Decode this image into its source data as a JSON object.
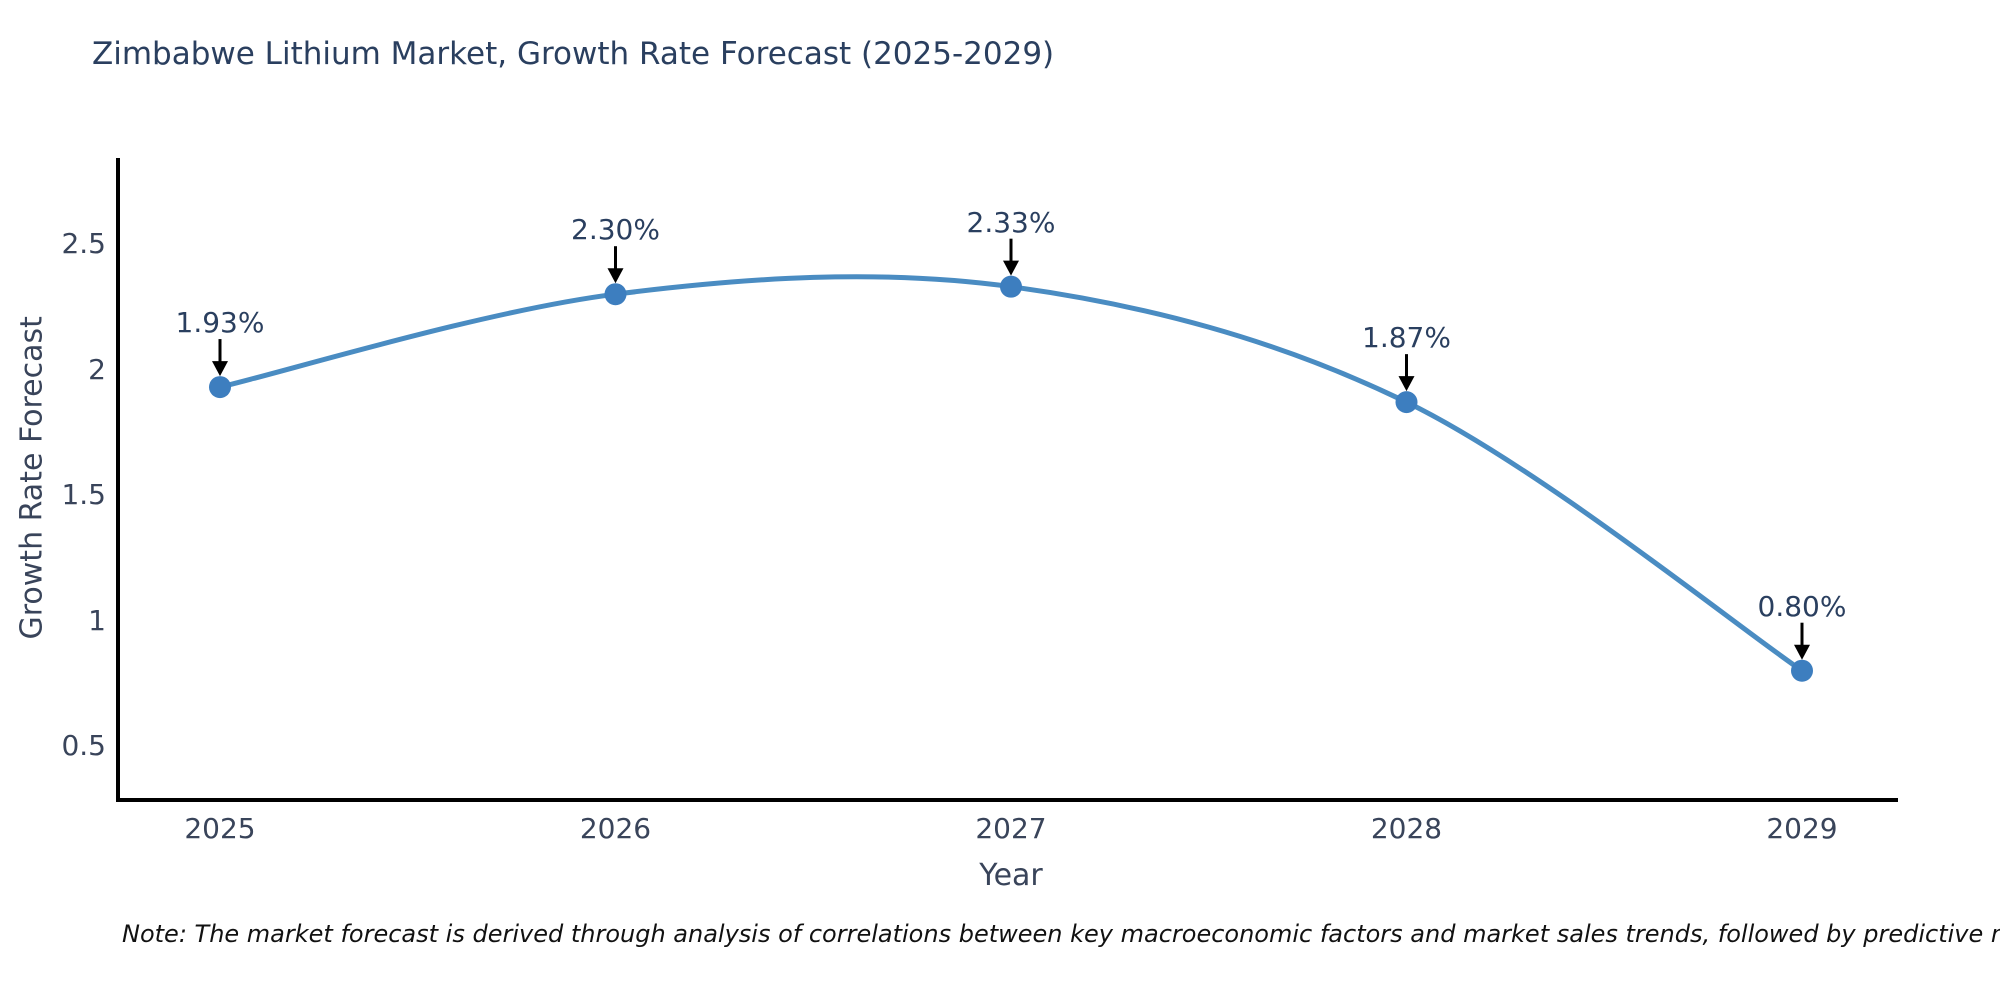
{
  "title": "Zimbabwe Lithium Market, Growth Rate Forecast (2025-2029)",
  "note": "Note: The market forecast is derived through analysis of correlations between key macroeconomic factors and market sales trends, followed by predictive modeling to project future sales",
  "chart_data": {
    "type": "line",
    "line_shape": "spline",
    "title": "Zimbabwe Lithium Market, Growth Rate Forecast (2025-2029)",
    "xlabel": "Year",
    "ylabel": "Growth Rate Forecast",
    "x": [
      2025,
      2026,
      2027,
      2028,
      2029
    ],
    "values": [
      1.93,
      2.3,
      2.33,
      1.87,
      0.8
    ],
    "point_labels": [
      "1.93%",
      "2.30%",
      "2.33%",
      "1.87%",
      "0.80%"
    ],
    "x_ticks": [
      "2025",
      "2026",
      "2027",
      "2028",
      "2029"
    ],
    "y_ticks": [
      "0.5",
      "1",
      "1.5",
      "2",
      "2.5"
    ],
    "y_tick_values": [
      0.5,
      1,
      1.5,
      2,
      2.5
    ],
    "ylim": [
      0.28,
      2.85
    ],
    "grid": false,
    "legend": false,
    "annotation_arrows": true,
    "colors": {
      "line": "#4a8cc2",
      "marker": "#3d7ebf",
      "axis": "#000000",
      "title_text": "#2a3f5f",
      "tick_text": "#39445a",
      "annotation_text": "#2a3f5f",
      "arrow": "#000000",
      "background": "#ffffff"
    }
  }
}
